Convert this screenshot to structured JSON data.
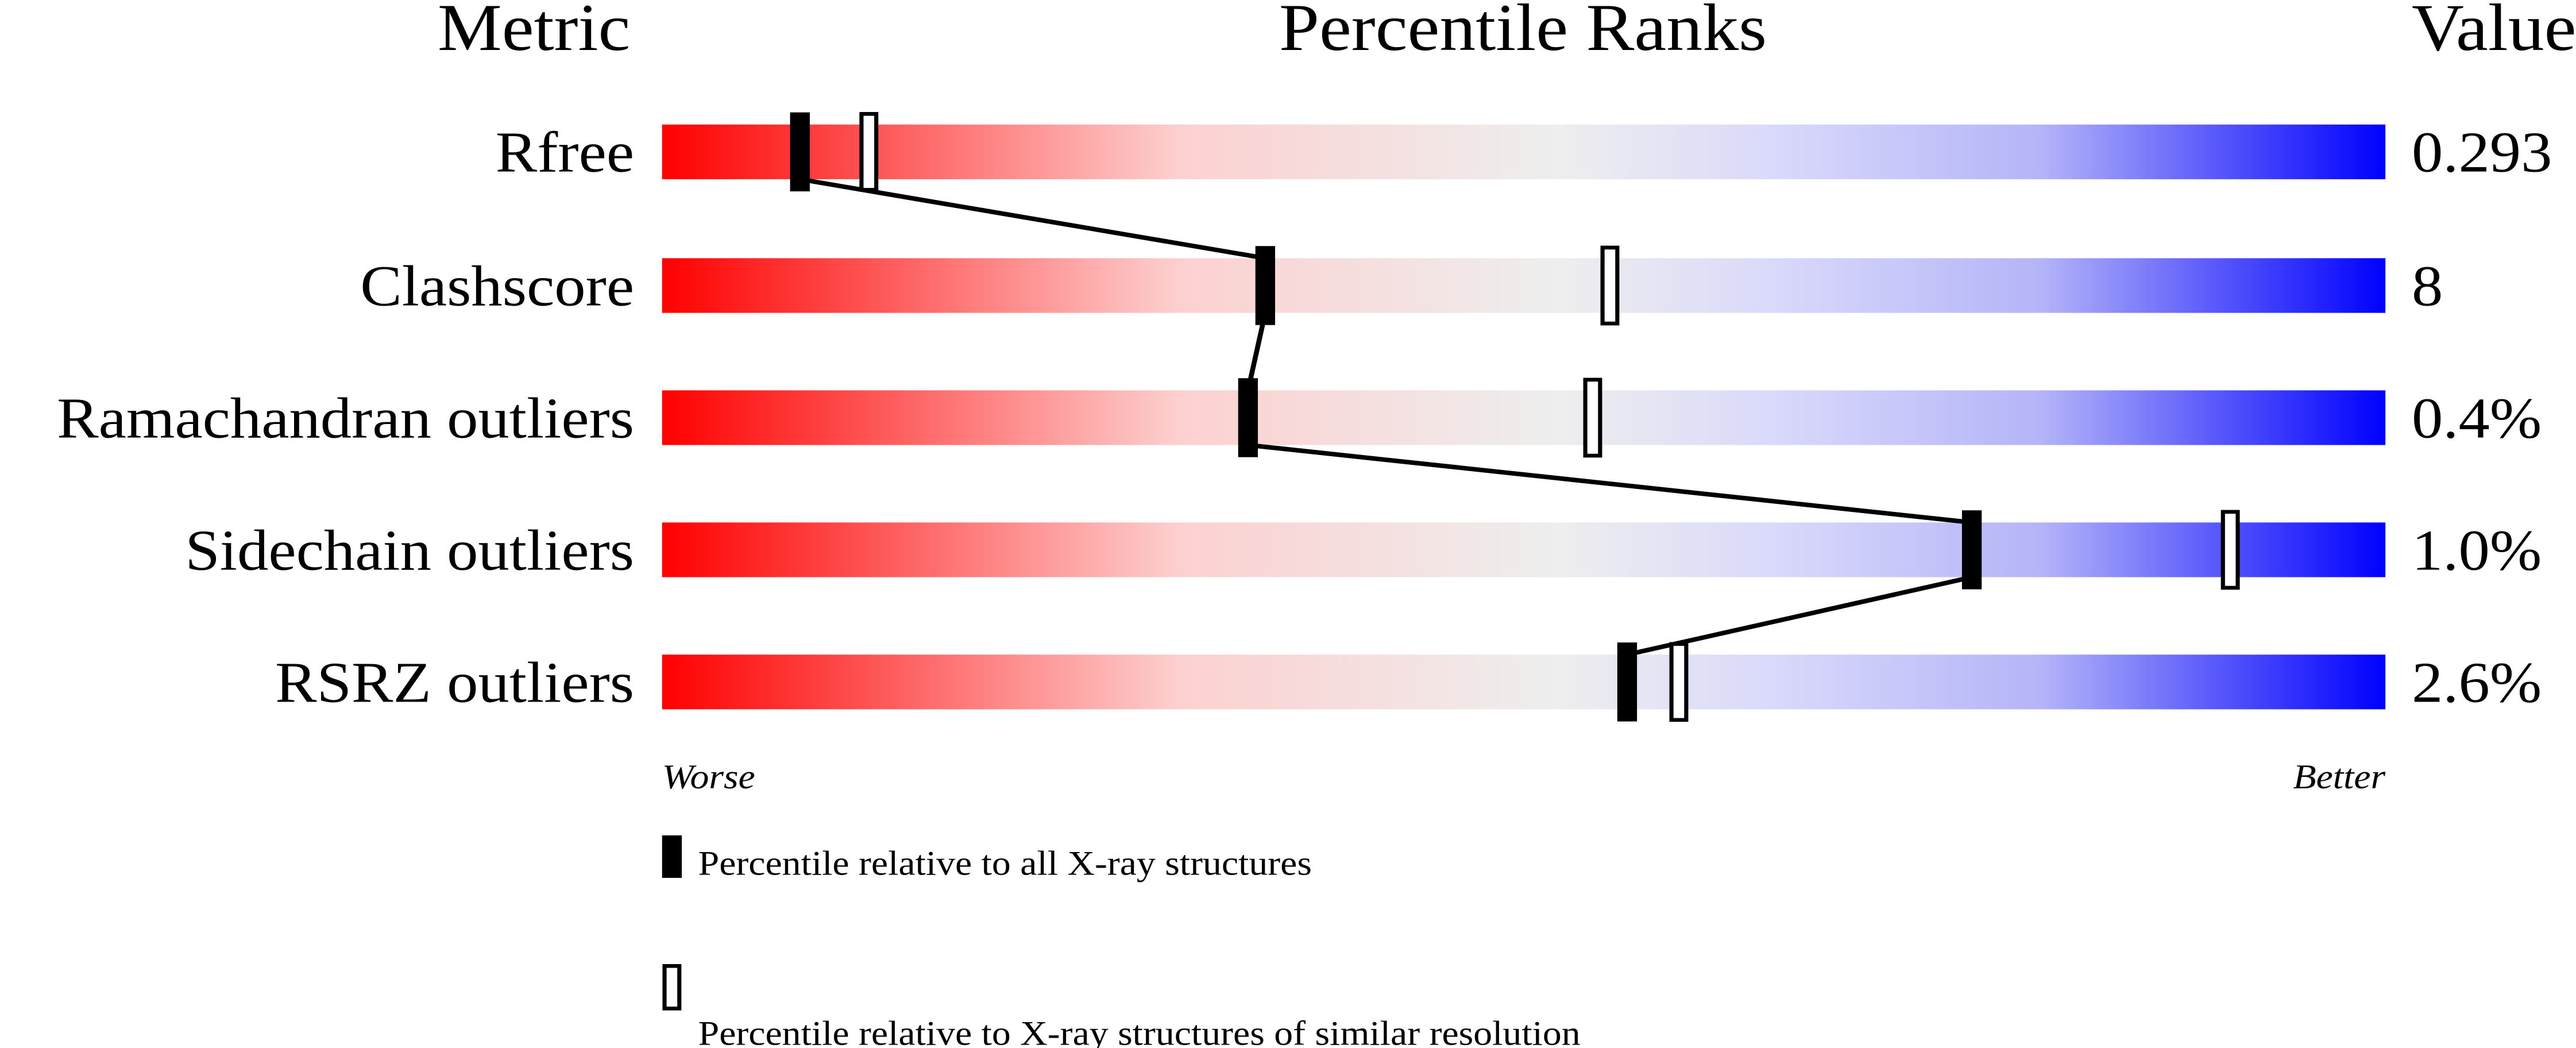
{
  "chart_data": {
    "type": "percentile-slider",
    "headers": {
      "metric": "Metric",
      "ranks": "Percentile Ranks",
      "value": "Value"
    },
    "xlim": [
      0,
      100
    ],
    "scale_labels": {
      "left": "Worse",
      "right": "Better"
    },
    "gradient_colors": [
      "#ff0000",
      "#fdd0d0",
      "#eeeeee",
      "#d8d8fb",
      "#0000ff"
    ],
    "metrics": [
      {
        "label": "Rfree",
        "value": "0.293",
        "percentile_all": 8,
        "percentile_similar": 12
      },
      {
        "label": "Clashscore",
        "value": "8",
        "percentile_all": 35,
        "percentile_similar": 55
      },
      {
        "label": "Ramachandran outliers",
        "value": "0.4%",
        "percentile_all": 34,
        "percentile_similar": 54
      },
      {
        "label": "Sidechain outliers",
        "value": "1.0%",
        "percentile_all": 76,
        "percentile_similar": 91
      },
      {
        "label": "RSRZ outliers",
        "value": "2.6%",
        "percentile_all": 56,
        "percentile_similar": 59
      }
    ],
    "legend": [
      {
        "marker": "filled",
        "label": "Percentile relative to all X-ray structures"
      },
      {
        "marker": "open",
        "label": "Percentile relative to X-ray structures of similar resolution"
      }
    ]
  }
}
